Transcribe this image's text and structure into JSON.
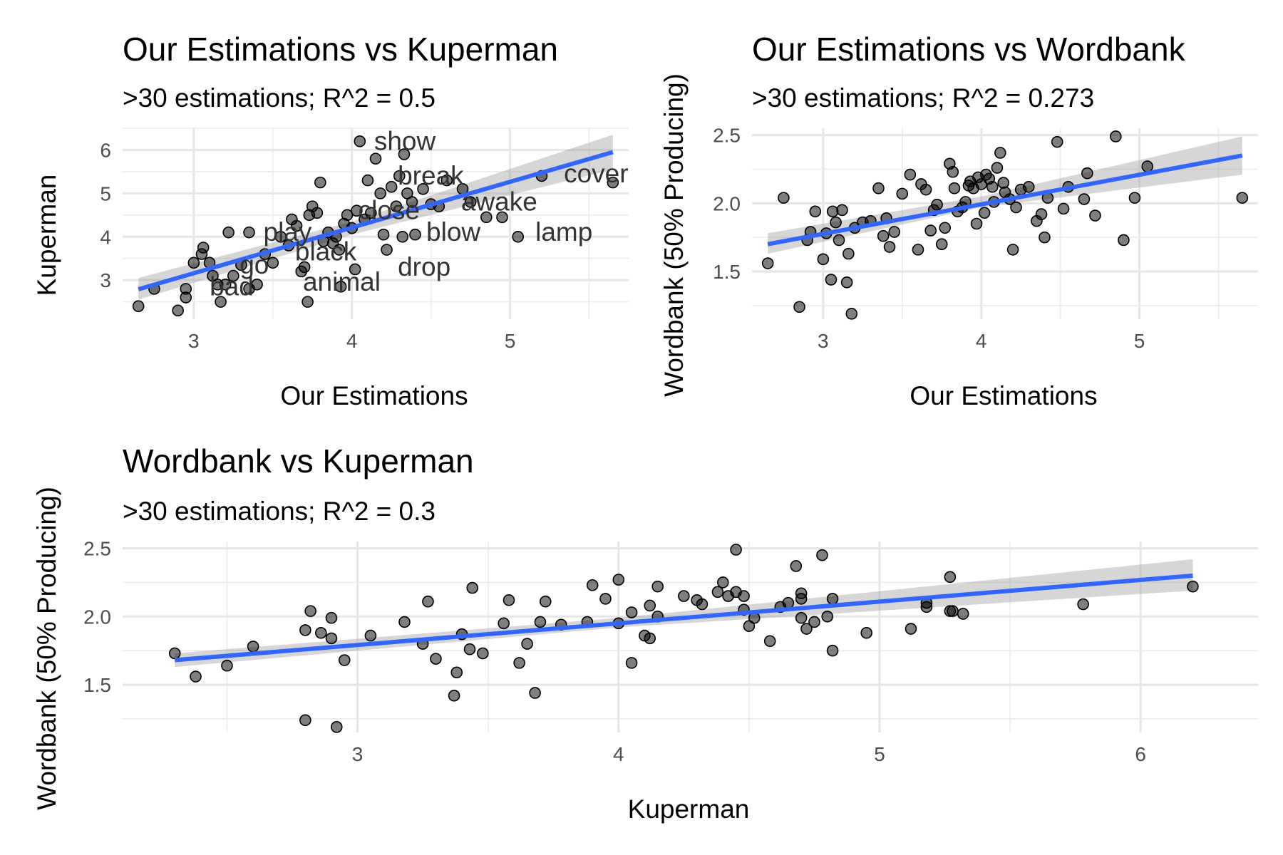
{
  "chart_data": [
    {
      "type": "scatter",
      "title": "Our Estimations vs Kuperman",
      "subtitle": ">30 estimations; R^2 = 0.5",
      "xlabel": "Our Estimations",
      "ylabel": "Kuperman",
      "xlim": [
        2.55,
        5.75
      ],
      "ylim": [
        2.1,
        6.5
      ],
      "x_ticks": [
        3,
        4,
        5
      ],
      "y_ticks": [
        3,
        4,
        5,
        6
      ],
      "grid": true,
      "fit": {
        "from": [
          2.65,
          2.79
        ],
        "to": [
          5.65,
          5.95
        ],
        "band": [
          [
            2.65,
            2.55,
            3.05
          ],
          [
            4.0,
            4.05,
            4.35
          ],
          [
            5.65,
            5.55,
            6.35
          ]
        ]
      },
      "points": [
        [
          2.65,
          2.4
        ],
        [
          2.75,
          2.8
        ],
        [
          2.9,
          2.3
        ],
        [
          2.95,
          2.6
        ],
        [
          2.95,
          2.8
        ],
        [
          3.0,
          3.4
        ],
        [
          3.05,
          3.6
        ],
        [
          3.06,
          3.75
        ],
        [
          3.1,
          3.4
        ],
        [
          3.12,
          3.1
        ],
        [
          3.15,
          2.9
        ],
        [
          3.17,
          2.5
        ],
        [
          3.2,
          2.9
        ],
        [
          3.22,
          4.1
        ],
        [
          3.25,
          3.1
        ],
        [
          3.3,
          3.35
        ],
        [
          3.35,
          2.8
        ],
        [
          3.35,
          4.1
        ],
        [
          3.4,
          2.9
        ],
        [
          3.45,
          3.6
        ],
        [
          3.5,
          3.4
        ],
        [
          3.55,
          4.0
        ],
        [
          3.6,
          3.8
        ],
        [
          3.62,
          4.4
        ],
        [
          3.65,
          4.25
        ],
        [
          3.68,
          3.2
        ],
        [
          3.7,
          3.3
        ],
        [
          3.72,
          2.5
        ],
        [
          3.73,
          4.5
        ],
        [
          3.75,
          4.7
        ],
        [
          3.78,
          4.55
        ],
        [
          3.8,
          5.25
        ],
        [
          3.82,
          3.9
        ],
        [
          3.85,
          4.1
        ],
        [
          3.88,
          3.85
        ],
        [
          3.9,
          4.0
        ],
        [
          3.92,
          3.7
        ],
        [
          3.93,
          2.85
        ],
        [
          3.95,
          4.3
        ],
        [
          3.97,
          4.5
        ],
        [
          4.0,
          4.2
        ],
        [
          4.02,
          3.25
        ],
        [
          4.03,
          4.6
        ],
        [
          4.05,
          6.2
        ],
        [
          4.08,
          4.4
        ],
        [
          4.1,
          5.3
        ],
        [
          4.12,
          4.55
        ],
        [
          4.15,
          5.8
        ],
        [
          4.18,
          5.0
        ],
        [
          4.2,
          4.05
        ],
        [
          4.22,
          3.7
        ],
        [
          4.25,
          5.15
        ],
        [
          4.28,
          4.7
        ],
        [
          4.3,
          5.4
        ],
        [
          4.32,
          4.0
        ],
        [
          4.33,
          5.9
        ],
        [
          4.35,
          5.0
        ],
        [
          4.38,
          4.8
        ],
        [
          4.4,
          4.05
        ],
        [
          4.45,
          5.1
        ],
        [
          4.5,
          4.75
        ],
        [
          4.55,
          4.7
        ],
        [
          4.6,
          5.3
        ],
        [
          4.7,
          5.1
        ],
        [
          4.75,
          4.8
        ],
        [
          4.85,
          4.45
        ],
        [
          4.95,
          4.45
        ],
        [
          5.05,
          4.0
        ],
        [
          5.2,
          5.4
        ],
        [
          5.65,
          5.25
        ]
      ],
      "labels": [
        {
          "text": "show",
          "x": 4.05,
          "y": 6.2
        },
        {
          "text": "break",
          "x": 4.2,
          "y": 5.4
        },
        {
          "text": "cover",
          "x": 5.25,
          "y": 5.45
        },
        {
          "text": "awake",
          "x": 4.6,
          "y": 4.8
        },
        {
          "text": "close",
          "x": 3.95,
          "y": 4.6
        },
        {
          "text": "play",
          "x": 3.35,
          "y": 4.1
        },
        {
          "text": "blow",
          "x": 4.38,
          "y": 4.1
        },
        {
          "text": "lamp",
          "x": 5.07,
          "y": 4.1
        },
        {
          "text": "black",
          "x": 3.55,
          "y": 3.65
        },
        {
          "text": "go",
          "x": 3.2,
          "y": 3.35
        },
        {
          "text": "drop",
          "x": 4.2,
          "y": 3.3
        },
        {
          "text": "animal",
          "x": 3.6,
          "y": 2.95
        },
        {
          "text": "bad",
          "x": 3.01,
          "y": 2.85
        }
      ]
    },
    {
      "type": "scatter",
      "title": "Our Estimations vs Wordbank",
      "subtitle": ">30 estimations; R^2 = 0.273",
      "xlabel": "Our Estimations",
      "ylabel": "Wordbank (50% Producing)",
      "xlim": [
        2.55,
        5.75
      ],
      "ylim": [
        1.15,
        2.55
      ],
      "x_ticks": [
        3,
        4,
        5
      ],
      "y_ticks": [
        1.5,
        2.0,
        2.5
      ],
      "y_tick_labels": [
        "1.5",
        "2.0",
        "2.5"
      ],
      "grid": true,
      "fit": {
        "from": [
          2.65,
          1.7
        ],
        "to": [
          5.65,
          2.35
        ],
        "band": [
          [
            2.65,
            1.63,
            1.78
          ],
          [
            4.0,
            1.97,
            2.05
          ],
          [
            5.65,
            2.21,
            2.49
          ]
        ]
      },
      "points": [
        [
          2.65,
          1.56
        ],
        [
          2.75,
          2.04
        ],
        [
          2.85,
          1.24
        ],
        [
          2.9,
          1.73
        ],
        [
          2.92,
          1.79
        ],
        [
          2.95,
          1.94
        ],
        [
          3.0,
          1.59
        ],
        [
          3.02,
          1.78
        ],
        [
          3.05,
          1.44
        ],
        [
          3.06,
          1.94
        ],
        [
          3.08,
          1.86
        ],
        [
          3.1,
          1.73
        ],
        [
          3.12,
          1.95
        ],
        [
          3.15,
          1.42
        ],
        [
          3.16,
          1.63
        ],
        [
          3.18,
          1.19
        ],
        [
          3.2,
          1.82
        ],
        [
          3.25,
          1.86
        ],
        [
          3.3,
          1.87
        ],
        [
          3.35,
          2.11
        ],
        [
          3.38,
          1.76
        ],
        [
          3.4,
          1.89
        ],
        [
          3.42,
          1.68
        ],
        [
          3.45,
          1.79
        ],
        [
          3.5,
          2.07
        ],
        [
          3.55,
          2.21
        ],
        [
          3.6,
          1.66
        ],
        [
          3.62,
          2.14
        ],
        [
          3.65,
          2.1
        ],
        [
          3.68,
          1.8
        ],
        [
          3.7,
          1.95
        ],
        [
          3.72,
          1.99
        ],
        [
          3.75,
          1.7
        ],
        [
          3.77,
          1.82
        ],
        [
          3.8,
          2.29
        ],
        [
          3.82,
          2.23
        ],
        [
          3.83,
          2.11
        ],
        [
          3.85,
          1.94
        ],
        [
          3.88,
          1.97
        ],
        [
          3.9,
          2.01
        ],
        [
          3.92,
          2.13
        ],
        [
          3.93,
          2.16
        ],
        [
          3.95,
          2.11
        ],
        [
          3.97,
          1.85
        ],
        [
          3.98,
          2.19
        ],
        [
          4.0,
          2.14
        ],
        [
          4.02,
          1.93
        ],
        [
          4.03,
          2.21
        ],
        [
          4.05,
          2.18
        ],
        [
          4.07,
          2.12
        ],
        [
          4.08,
          2.01
        ],
        [
          4.1,
          2.26
        ],
        [
          4.12,
          2.37
        ],
        [
          4.14,
          2.15
        ],
        [
          4.15,
          2.08
        ],
        [
          4.18,
          2.03
        ],
        [
          4.2,
          1.66
        ],
        [
          4.22,
          1.97
        ],
        [
          4.25,
          2.1
        ],
        [
          4.3,
          2.12
        ],
        [
          4.35,
          1.87
        ],
        [
          4.38,
          1.92
        ],
        [
          4.4,
          1.75
        ],
        [
          4.42,
          2.04
        ],
        [
          4.48,
          2.45
        ],
        [
          4.52,
          1.96
        ],
        [
          4.55,
          2.12
        ],
        [
          4.65,
          2.03
        ],
        [
          4.67,
          2.22
        ],
        [
          4.72,
          1.91
        ],
        [
          4.85,
          2.49
        ],
        [
          4.9,
          1.73
        ],
        [
          4.97,
          2.04
        ],
        [
          5.05,
          2.27
        ],
        [
          5.65,
          2.04
        ]
      ]
    },
    {
      "type": "scatter",
      "title": "Wordbank vs Kuperman",
      "subtitle": ">30 estimations; R^2 = 0.3",
      "xlabel": "Kuperman",
      "ylabel": "Wordbank (50% Producing)",
      "xlim": [
        2.1,
        6.45
      ],
      "ylim": [
        1.15,
        2.55
      ],
      "x_ticks": [
        3,
        4,
        5,
        6
      ],
      "y_ticks": [
        1.5,
        2.0,
        2.5
      ],
      "y_tick_labels": [
        "1.5",
        "2.0",
        "2.5"
      ],
      "grid": true,
      "fit": {
        "from": [
          2.3,
          1.68
        ],
        "to": [
          6.2,
          2.3
        ],
        "band": [
          [
            2.3,
            1.63,
            1.73
          ],
          [
            4.0,
            1.92,
            1.99
          ],
          [
            6.2,
            2.19,
            2.42
          ]
        ]
      },
      "points": [
        [
          2.3,
          1.73
        ],
        [
          2.38,
          1.56
        ],
        [
          2.5,
          1.64
        ],
        [
          2.6,
          1.78
        ],
        [
          2.8,
          1.24
        ],
        [
          2.8,
          1.9
        ],
        [
          2.82,
          2.04
        ],
        [
          2.86,
          1.88
        ],
        [
          2.9,
          1.84
        ],
        [
          2.9,
          1.99
        ],
        [
          2.92,
          1.19
        ],
        [
          2.95,
          1.68
        ],
        [
          3.05,
          1.86
        ],
        [
          3.18,
          1.96
        ],
        [
          3.25,
          1.8
        ],
        [
          3.27,
          2.11
        ],
        [
          3.3,
          1.69
        ],
        [
          3.37,
          1.42
        ],
        [
          3.38,
          1.59
        ],
        [
          3.4,
          1.87
        ],
        [
          3.43,
          1.76
        ],
        [
          3.44,
          2.21
        ],
        [
          3.48,
          1.73
        ],
        [
          3.56,
          1.95
        ],
        [
          3.58,
          2.12
        ],
        [
          3.62,
          1.66
        ],
        [
          3.65,
          1.8
        ],
        [
          3.68,
          1.44
        ],
        [
          3.7,
          1.96
        ],
        [
          3.72,
          2.11
        ],
        [
          3.78,
          1.94
        ],
        [
          3.88,
          1.96
        ],
        [
          3.9,
          2.23
        ],
        [
          3.95,
          2.13
        ],
        [
          4.0,
          1.95
        ],
        [
          4.0,
          2.27
        ],
        [
          4.05,
          1.66
        ],
        [
          4.05,
          2.03
        ],
        [
          4.1,
          1.86
        ],
        [
          4.12,
          2.08
        ],
        [
          4.12,
          1.84
        ],
        [
          4.15,
          2.22
        ],
        [
          4.15,
          2.0
        ],
        [
          4.25,
          2.15
        ],
        [
          4.3,
          2.12
        ],
        [
          4.32,
          2.09
        ],
        [
          4.38,
          2.18
        ],
        [
          4.4,
          2.25
        ],
        [
          4.42,
          2.15
        ],
        [
          4.45,
          2.18
        ],
        [
          4.45,
          2.49
        ],
        [
          4.48,
          2.05
        ],
        [
          4.48,
          2.15
        ],
        [
          4.5,
          1.93
        ],
        [
          4.52,
          1.99
        ],
        [
          4.58,
          1.82
        ],
        [
          4.62,
          2.07
        ],
        [
          4.65,
          2.1
        ],
        [
          4.68,
          2.37
        ],
        [
          4.7,
          2.13
        ],
        [
          4.7,
          1.99
        ],
        [
          4.7,
          2.17
        ],
        [
          4.72,
          1.91
        ],
        [
          4.75,
          1.96
        ],
        [
          4.78,
          2.45
        ],
        [
          4.8,
          2.0
        ],
        [
          4.82,
          1.75
        ],
        [
          4.82,
          2.13
        ],
        [
          4.95,
          1.88
        ],
        [
          5.12,
          1.91
        ],
        [
          5.18,
          2.1
        ],
        [
          5.18,
          2.07
        ],
        [
          5.27,
          2.04
        ],
        [
          5.27,
          2.29
        ],
        [
          5.28,
          2.04
        ],
        [
          5.32,
          2.02
        ],
        [
          5.78,
          2.09
        ],
        [
          6.2,
          2.22
        ]
      ]
    }
  ]
}
